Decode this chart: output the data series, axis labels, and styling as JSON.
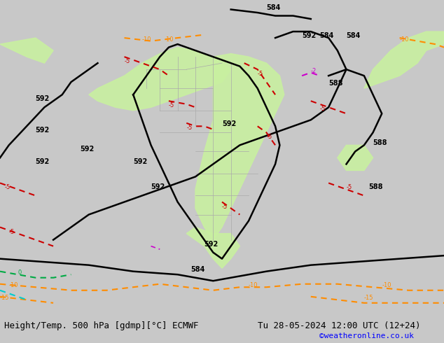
{
  "title_left": "Height/Temp. 500 hPa [gdmp][°C] ECMWF",
  "title_right": "Tu 28-05-2024 12:00 UTC (12+24)",
  "credit": "©weatheronline.co.uk",
  "bg_color": "#d0d0d0",
  "map_bg_color": "#cccccc",
  "green_fill_color": "#c8f0a0",
  "contour_color_height": "#000000",
  "contour_color_temp_neg": "#cc0000",
  "contour_color_temp_pos": "#ff8c00",
  "contour_color_temp_zero": "#00aa44",
  "contour_color_temp_cyan": "#00cccc",
  "contour_color_temp_magenta": "#cc00cc",
  "label_fontsize": 8,
  "title_fontsize": 9,
  "credit_fontsize": 8,
  "figsize": [
    6.34,
    4.9
  ],
  "dpi": 100
}
